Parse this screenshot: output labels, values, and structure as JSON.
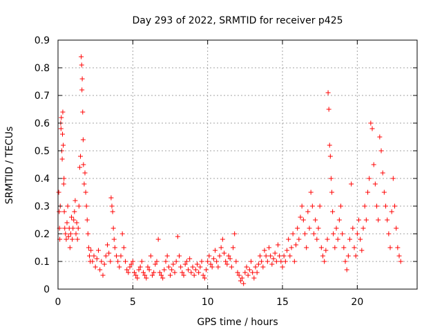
{
  "chart_data": {
    "type": "scatter",
    "title": "Day 293 of 2022, SRMTID for receiver p425",
    "xlabel": "GPS time / hours",
    "ylabel": "SRMTID / TECUs",
    "xlim": [
      0,
      24
    ],
    "ylim": [
      0,
      0.9
    ],
    "xticks": [
      0,
      5,
      10,
      15,
      20
    ],
    "yticks": [
      0,
      0.1,
      0.2,
      0.3,
      0.4,
      0.5,
      0.6,
      0.7,
      0.8,
      0.9
    ],
    "xtick_labels": [
      "0",
      "5",
      "10",
      "15",
      "20"
    ],
    "ytick_labels": [
      "0",
      "0.1",
      "0.2",
      "0.3",
      "0.4",
      "0.5",
      "0.6",
      "0.7",
      "0.8",
      "0.9"
    ],
    "grid": true,
    "marker": "plus",
    "color": "#ff0000",
    "series": [
      {
        "name": "SRMTID",
        "points": [
          [
            0.05,
            0.35
          ],
          [
            0.08,
            0.28
          ],
          [
            0.1,
            0.22
          ],
          [
            0.12,
            0.18
          ],
          [
            0.15,
            0.3
          ],
          [
            0.18,
            0.6
          ],
          [
            0.2,
            0.58
          ],
          [
            0.22,
            0.62
          ],
          [
            0.25,
            0.5
          ],
          [
            0.28,
            0.47
          ],
          [
            0.3,
            0.56
          ],
          [
            0.32,
            0.64
          ],
          [
            0.35,
            0.52
          ],
          [
            0.38,
            0.38
          ],
          [
            0.4,
            0.4
          ],
          [
            0.42,
            0.28
          ],
          [
            0.45,
            0.22
          ],
          [
            0.5,
            0.2
          ],
          [
            0.55,
            0.18
          ],
          [
            0.6,
            0.24
          ],
          [
            0.65,
            0.3
          ],
          [
            0.7,
            0.19
          ],
          [
            0.75,
            0.22
          ],
          [
            0.8,
            0.15
          ],
          [
            0.85,
            0.2
          ],
          [
            0.9,
            0.26
          ],
          [
            0.95,
            0.18
          ],
          [
            1.0,
            0.22
          ],
          [
            1.05,
            0.25
          ],
          [
            1.1,
            0.28
          ],
          [
            1.15,
            0.32
          ],
          [
            1.2,
            0.2
          ],
          [
            1.25,
            0.24
          ],
          [
            1.3,
            0.18
          ],
          [
            1.35,
            0.22
          ],
          [
            1.4,
            0.3
          ],
          [
            1.45,
            0.44
          ],
          [
            1.5,
            0.48
          ],
          [
            1.55,
            0.84
          ],
          [
            1.58,
            0.81
          ],
          [
            1.6,
            0.72
          ],
          [
            1.62,
            0.76
          ],
          [
            1.65,
            0.64
          ],
          [
            1.68,
            0.54
          ],
          [
            1.7,
            0.45
          ],
          [
            1.75,
            0.38
          ],
          [
            1.8,
            0.42
          ],
          [
            1.85,
            0.35
          ],
          [
            1.9,
            0.3
          ],
          [
            1.95,
            0.25
          ],
          [
            2.0,
            0.2
          ],
          [
            2.05,
            0.15
          ],
          [
            2.1,
            0.12
          ],
          [
            2.15,
            0.1
          ],
          [
            2.2,
            0.14
          ],
          [
            2.3,
            0.1
          ],
          [
            2.4,
            0.12
          ],
          [
            2.5,
            0.08
          ],
          [
            2.6,
            0.11
          ],
          [
            2.7,
            0.14
          ],
          [
            2.8,
            0.07
          ],
          [
            2.9,
            0.1
          ],
          [
            3.0,
            0.05
          ],
          [
            3.1,
            0.09
          ],
          [
            3.2,
            0.12
          ],
          [
            3.3,
            0.16
          ],
          [
            3.4,
            0.13
          ],
          [
            3.5,
            0.1
          ],
          [
            3.55,
            0.33
          ],
          [
            3.6,
            0.3
          ],
          [
            3.65,
            0.28
          ],
          [
            3.7,
            0.22
          ],
          [
            3.75,
            0.18
          ],
          [
            3.8,
            0.15
          ],
          [
            3.9,
            0.12
          ],
          [
            4.0,
            0.1
          ],
          [
            4.1,
            0.08
          ],
          [
            4.2,
            0.12
          ],
          [
            4.3,
            0.2
          ],
          [
            4.4,
            0.15
          ],
          [
            4.5,
            0.1
          ],
          [
            4.6,
            0.07
          ],
          [
            4.7,
            0.06
          ],
          [
            4.8,
            0.08
          ],
          [
            4.9,
            0.09
          ],
          [
            5.0,
            0.1
          ],
          [
            5.1,
            0.06
          ],
          [
            5.2,
            0.05
          ],
          [
            5.3,
            0.04
          ],
          [
            5.4,
            0.07
          ],
          [
            5.5,
            0.08
          ],
          [
            5.6,
            0.1
          ],
          [
            5.7,
            0.06
          ],
          [
            5.8,
            0.05
          ],
          [
            5.9,
            0.04
          ],
          [
            6.0,
            0.08
          ],
          [
            6.1,
            0.07
          ],
          [
            6.2,
            0.12
          ],
          [
            6.3,
            0.05
          ],
          [
            6.4,
            0.06
          ],
          [
            6.5,
            0.09
          ],
          [
            6.6,
            0.1
          ],
          [
            6.7,
            0.18
          ],
          [
            6.8,
            0.06
          ],
          [
            6.9,
            0.05
          ],
          [
            7.0,
            0.04
          ],
          [
            7.1,
            0.07
          ],
          [
            7.2,
            0.1
          ],
          [
            7.3,
            0.12
          ],
          [
            7.4,
            0.08
          ],
          [
            7.5,
            0.05
          ],
          [
            7.6,
            0.07
          ],
          [
            7.7,
            0.09
          ],
          [
            7.8,
            0.06
          ],
          [
            7.9,
            0.1
          ],
          [
            8.0,
            0.19
          ],
          [
            8.1,
            0.12
          ],
          [
            8.2,
            0.08
          ],
          [
            8.3,
            0.06
          ],
          [
            8.4,
            0.05
          ],
          [
            8.5,
            0.09
          ],
          [
            8.6,
            0.1
          ],
          [
            8.7,
            0.07
          ],
          [
            8.8,
            0.11
          ],
          [
            8.9,
            0.06
          ],
          [
            9.0,
            0.08
          ],
          [
            9.1,
            0.05
          ],
          [
            9.2,
            0.07
          ],
          [
            9.3,
            0.09
          ],
          [
            9.4,
            0.06
          ],
          [
            9.5,
            0.08
          ],
          [
            9.6,
            0.1
          ],
          [
            9.7,
            0.05
          ],
          [
            9.8,
            0.04
          ],
          [
            9.9,
            0.07
          ],
          [
            10.0,
            0.1
          ],
          [
            10.1,
            0.12
          ],
          [
            10.2,
            0.09
          ],
          [
            10.3,
            0.08
          ],
          [
            10.4,
            0.11
          ],
          [
            10.5,
            0.14
          ],
          [
            10.6,
            0.1
          ],
          [
            10.7,
            0.08
          ],
          [
            10.8,
            0.12
          ],
          [
            10.9,
            0.15
          ],
          [
            11.0,
            0.18
          ],
          [
            11.1,
            0.13
          ],
          [
            11.2,
            0.1
          ],
          [
            11.3,
            0.09
          ],
          [
            11.4,
            0.12
          ],
          [
            11.5,
            0.11
          ],
          [
            11.6,
            0.08
          ],
          [
            11.7,
            0.15
          ],
          [
            11.8,
            0.2
          ],
          [
            11.9,
            0.1
          ],
          [
            12.0,
            0.06
          ],
          [
            12.1,
            0.05
          ],
          [
            12.2,
            0.03
          ],
          [
            12.3,
            0.04
          ],
          [
            12.4,
            0.02
          ],
          [
            12.5,
            0.06
          ],
          [
            12.6,
            0.08
          ],
          [
            12.7,
            0.05
          ],
          [
            12.8,
            0.07
          ],
          [
            12.9,
            0.1
          ],
          [
            13.0,
            0.06
          ],
          [
            13.1,
            0.04
          ],
          [
            13.2,
            0.08
          ],
          [
            13.3,
            0.06
          ],
          [
            13.4,
            0.09
          ],
          [
            13.5,
            0.12
          ],
          [
            13.6,
            0.1
          ],
          [
            13.7,
            0.08
          ],
          [
            13.8,
            0.14
          ],
          [
            13.9,
            0.12
          ],
          [
            14.0,
            0.1
          ],
          [
            14.1,
            0.15
          ],
          [
            14.2,
            0.12
          ],
          [
            14.3,
            0.09
          ],
          [
            14.4,
            0.11
          ],
          [
            14.5,
            0.13
          ],
          [
            14.6,
            0.1
          ],
          [
            14.7,
            0.16
          ],
          [
            14.8,
            0.12
          ],
          [
            14.9,
            0.1
          ],
          [
            15.0,
            0.08
          ],
          [
            15.1,
            0.12
          ],
          [
            15.2,
            0.1
          ],
          [
            15.3,
            0.14
          ],
          [
            15.4,
            0.18
          ],
          [
            15.5,
            0.12
          ],
          [
            15.6,
            0.15
          ],
          [
            15.7,
            0.2
          ],
          [
            15.8,
            0.1
          ],
          [
            15.9,
            0.16
          ],
          [
            16.0,
            0.22
          ],
          [
            16.1,
            0.18
          ],
          [
            16.2,
            0.26
          ],
          [
            16.3,
            0.3
          ],
          [
            16.4,
            0.25
          ],
          [
            16.5,
            0.2
          ],
          [
            16.6,
            0.15
          ],
          [
            16.7,
            0.28
          ],
          [
            16.8,
            0.22
          ],
          [
            16.9,
            0.35
          ],
          [
            17.0,
            0.3
          ],
          [
            17.1,
            0.2
          ],
          [
            17.2,
            0.25
          ],
          [
            17.3,
            0.18
          ],
          [
            17.4,
            0.22
          ],
          [
            17.5,
            0.3
          ],
          [
            17.6,
            0.15
          ],
          [
            17.7,
            0.12
          ],
          [
            17.8,
            0.1
          ],
          [
            17.9,
            0.14
          ],
          [
            18.0,
            0.18
          ],
          [
            18.05,
            0.71
          ],
          [
            18.1,
            0.65
          ],
          [
            18.15,
            0.52
          ],
          [
            18.2,
            0.48
          ],
          [
            18.25,
            0.4
          ],
          [
            18.3,
            0.35
          ],
          [
            18.35,
            0.28
          ],
          [
            18.4,
            0.2
          ],
          [
            18.5,
            0.15
          ],
          [
            18.6,
            0.22
          ],
          [
            18.7,
            0.18
          ],
          [
            18.8,
            0.25
          ],
          [
            18.9,
            0.3
          ],
          [
            19.0,
            0.2
          ],
          [
            19.1,
            0.15
          ],
          [
            19.2,
            0.1
          ],
          [
            19.3,
            0.07
          ],
          [
            19.4,
            0.12
          ],
          [
            19.5,
            0.18
          ],
          [
            19.6,
            0.38
          ],
          [
            19.7,
            0.22
          ],
          [
            19.8,
            0.15
          ],
          [
            19.9,
            0.12
          ],
          [
            20.0,
            0.2
          ],
          [
            20.1,
            0.25
          ],
          [
            20.2,
            0.18
          ],
          [
            20.3,
            0.14
          ],
          [
            20.4,
            0.22
          ],
          [
            20.5,
            0.3
          ],
          [
            20.6,
            0.25
          ],
          [
            20.7,
            0.35
          ],
          [
            20.8,
            0.4
          ],
          [
            20.9,
            0.6
          ],
          [
            21.0,
            0.58
          ],
          [
            21.1,
            0.45
          ],
          [
            21.2,
            0.38
          ],
          [
            21.3,
            0.3
          ],
          [
            21.4,
            0.25
          ],
          [
            21.5,
            0.55
          ],
          [
            21.6,
            0.5
          ],
          [
            21.7,
            0.42
          ],
          [
            21.8,
            0.35
          ],
          [
            21.9,
            0.3
          ],
          [
            22.0,
            0.25
          ],
          [
            22.1,
            0.2
          ],
          [
            22.2,
            0.15
          ],
          [
            22.3,
            0.28
          ],
          [
            22.4,
            0.4
          ],
          [
            22.5,
            0.3
          ],
          [
            22.6,
            0.22
          ],
          [
            22.7,
            0.15
          ],
          [
            22.8,
            0.12
          ],
          [
            22.9,
            0.1
          ]
        ]
      }
    ]
  }
}
